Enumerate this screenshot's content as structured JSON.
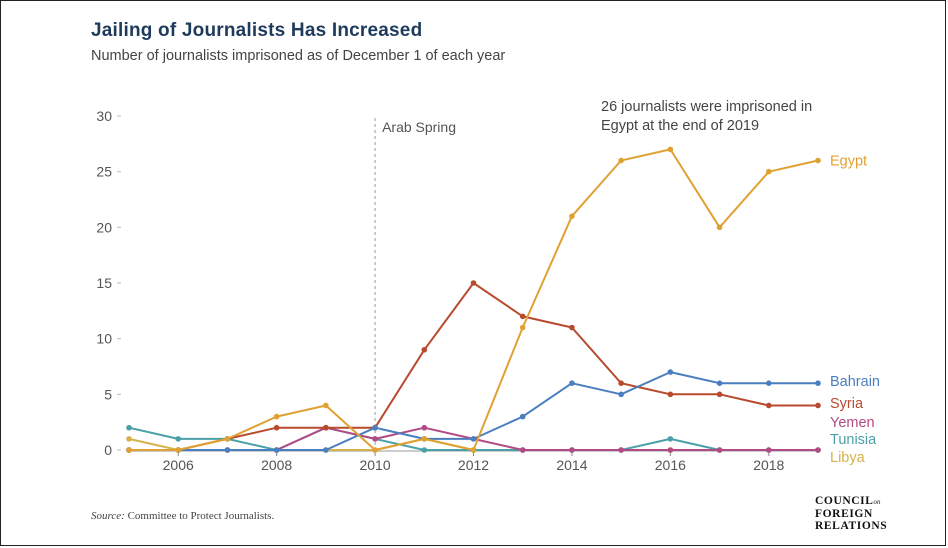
{
  "title": "Jailing of Journalists Has Increased",
  "subtitle": "Number of journalists imprisoned as of December 1 of each year",
  "source_label": "Source:",
  "source_text": "Committee to Protect Journalists.",
  "logo": {
    "line1": "COUNCIL",
    "line1_small": "on",
    "line2": "FOREIGN",
    "line3": "RELATIONS"
  },
  "chart_data": {
    "type": "line",
    "x": [
      2005,
      2006,
      2007,
      2008,
      2009,
      2010,
      2011,
      2012,
      2013,
      2014,
      2015,
      2016,
      2017,
      2018,
      2019
    ],
    "xticks": [
      "2006",
      "2008",
      "2010",
      "2012",
      "2014",
      "2016",
      "2018"
    ],
    "yticks": [
      "0",
      "5",
      "10",
      "15",
      "20",
      "25",
      "30"
    ],
    "ylim": [
      0,
      30
    ],
    "xlim": [
      2005,
      2019
    ],
    "grid": false,
    "series": [
      {
        "name": "Egypt",
        "color": "#e0a133",
        "values": [
          0,
          0,
          1,
          3,
          4,
          0,
          1,
          0,
          11,
          21,
          26,
          27,
          20,
          25,
          26
        ]
      },
      {
        "name": "Bahrain",
        "color": "#4a7fbf",
        "values": [
          0,
          0,
          0,
          0,
          0,
          2,
          1,
          1,
          3,
          6,
          5,
          7,
          6,
          6,
          6
        ]
      },
      {
        "name": "Syria",
        "color": "#b84a2e",
        "values": [
          0,
          0,
          1,
          2,
          2,
          2,
          9,
          15,
          12,
          11,
          6,
          5,
          5,
          4,
          4
        ]
      },
      {
        "name": "Yemen",
        "color": "#b24a85",
        "values": [
          0,
          0,
          0,
          0,
          2,
          1,
          2,
          1,
          0,
          0,
          0,
          0,
          0,
          0,
          0
        ]
      },
      {
        "name": "Tunisia",
        "color": "#4aa0a8",
        "values": [
          2,
          1,
          1,
          0,
          2,
          1,
          0,
          0,
          0,
          0,
          0,
          1,
          0,
          0,
          0
        ]
      },
      {
        "name": "Libya",
        "color": "#d6b24e",
        "values": [
          1,
          0,
          0,
          0,
          0,
          0,
          1,
          0,
          0,
          0,
          0,
          0,
          0,
          0,
          0
        ]
      }
    ],
    "annotations": [
      {
        "text": "Arab Spring",
        "x": 2010
      },
      {
        "text_lines": [
          "26 journalists were imprisoned in",
          "Egypt at the end of 2019"
        ]
      }
    ]
  }
}
